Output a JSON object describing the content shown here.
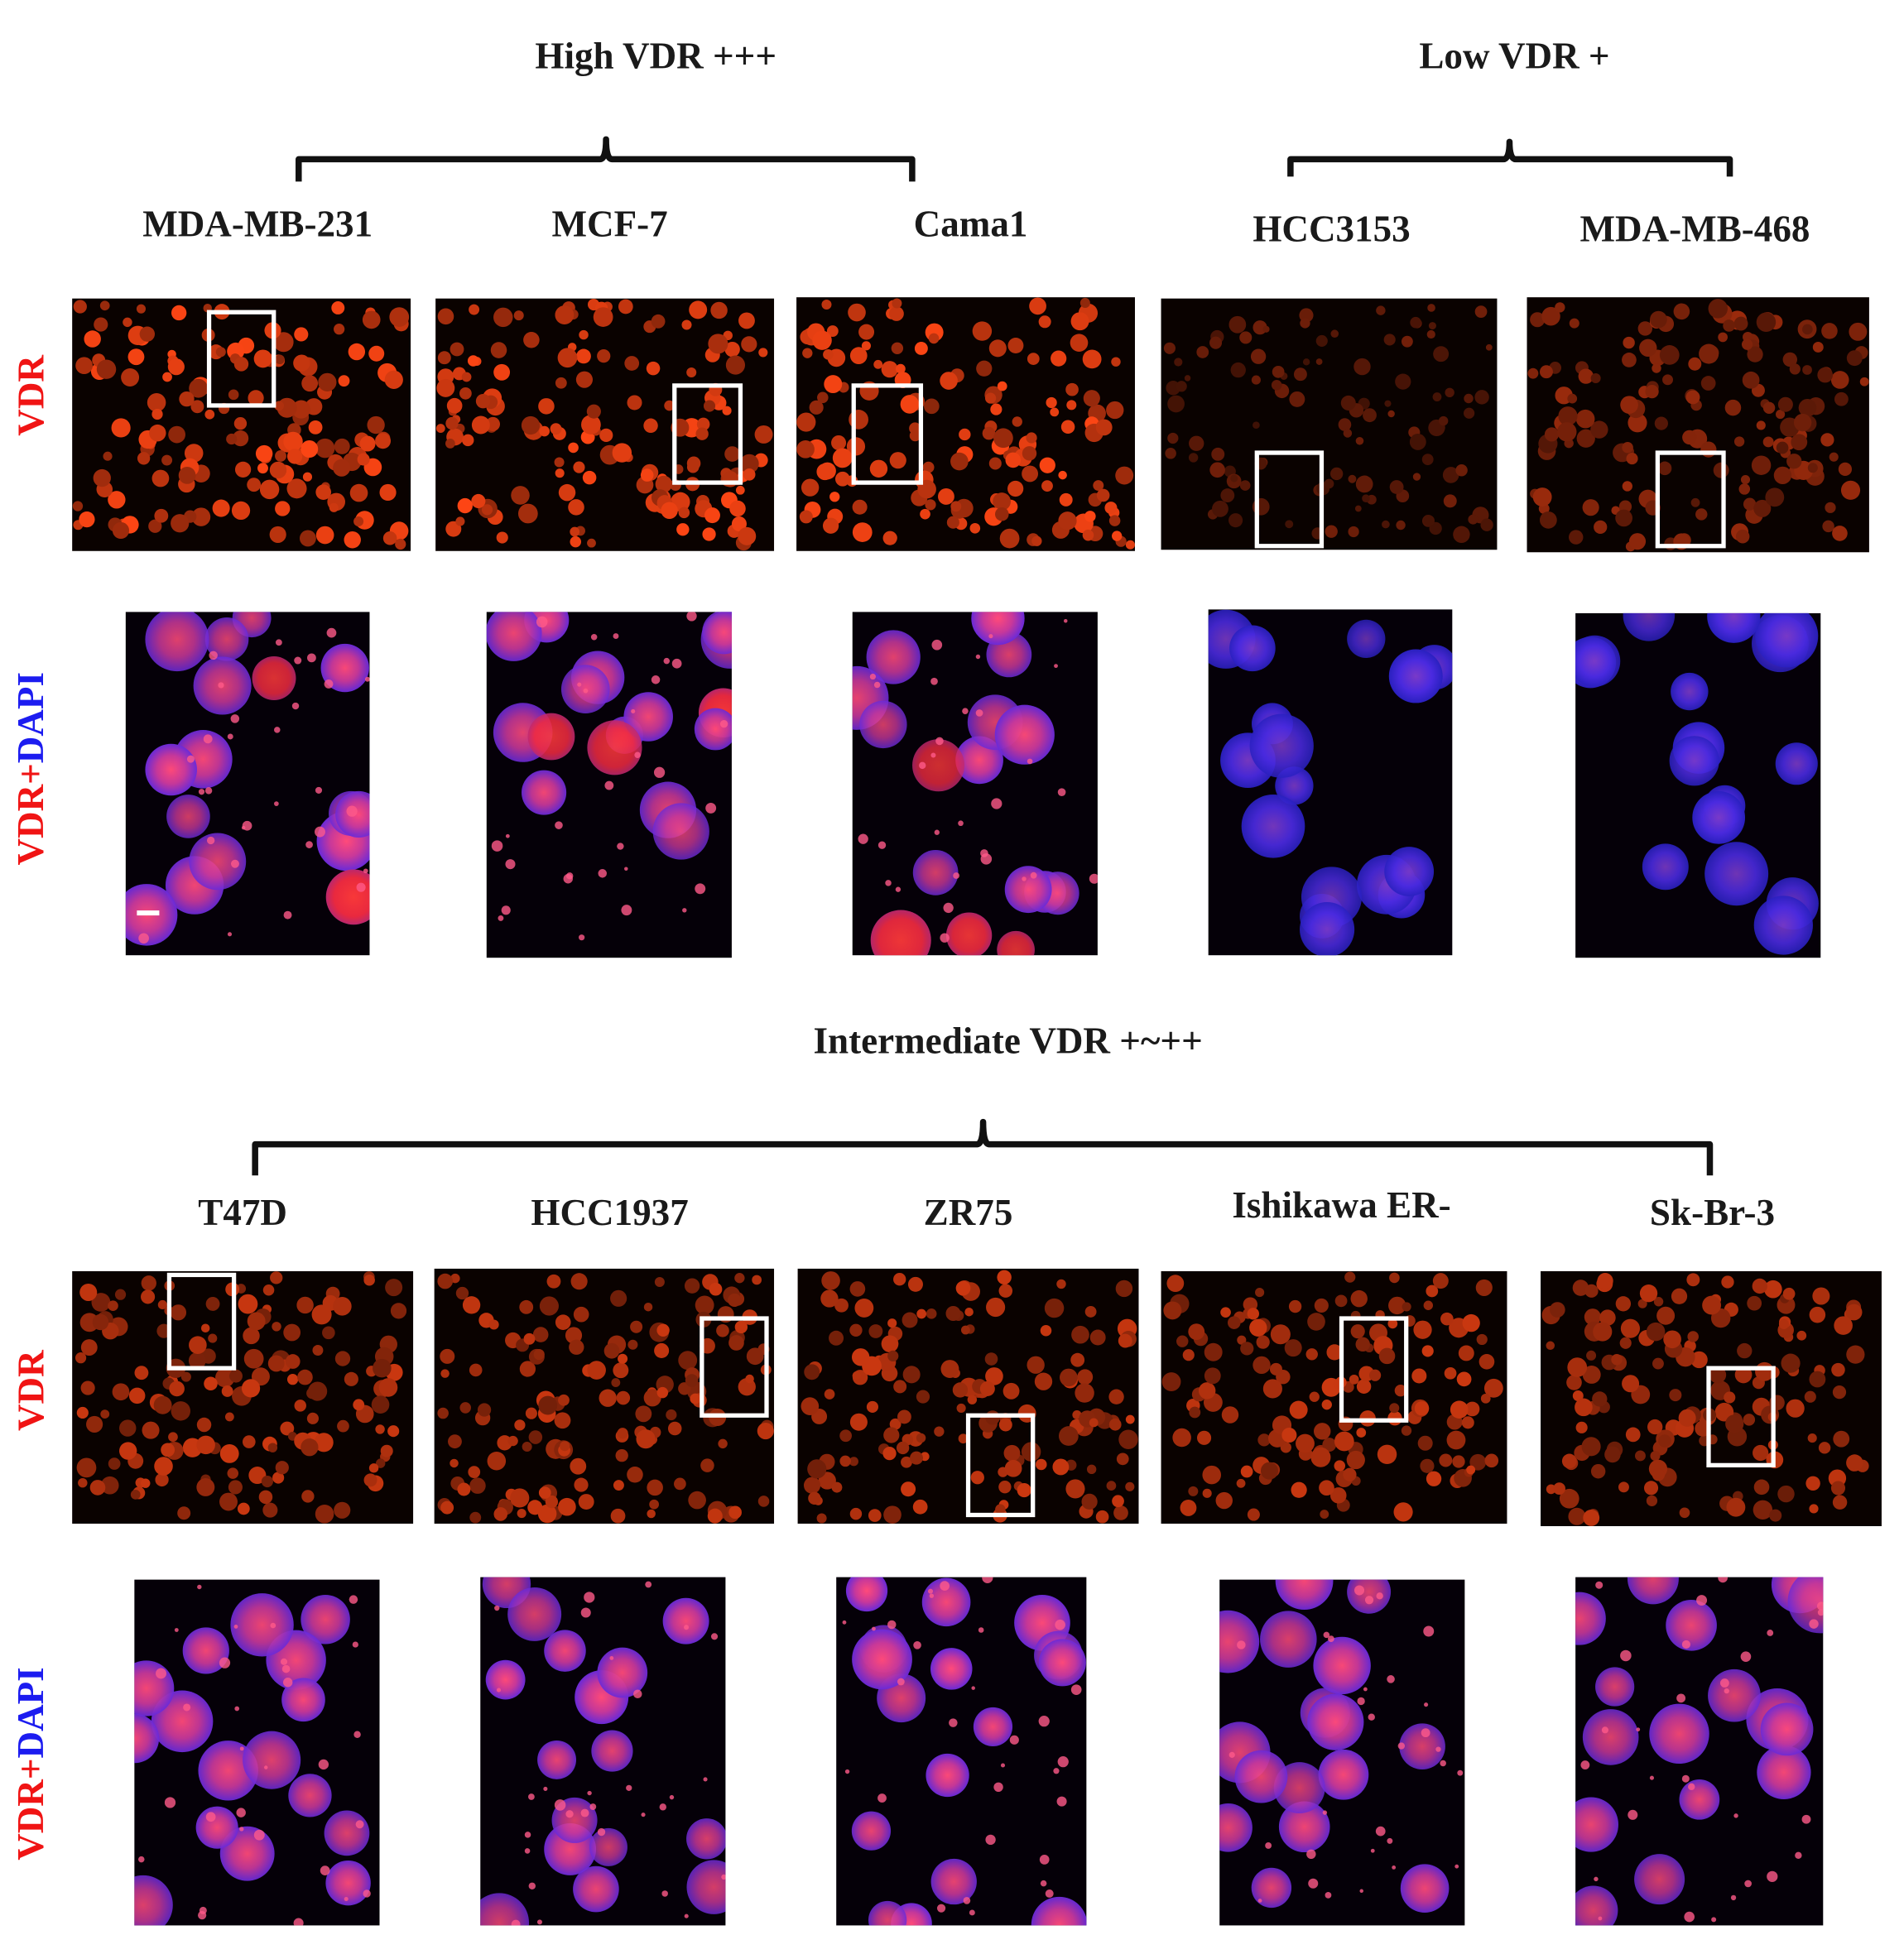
{
  "groups": [
    {
      "label": "High VDR +++"
    },
    {
      "label": "Low VDR +"
    },
    {
      "label": "Intermediate VDR +~++"
    }
  ],
  "cell_lines": [
    "MDA-MB-231",
    "MCF-7",
    "Cama1",
    "HCC3153",
    "MDA-MB-468",
    "T47D",
    "HCC1937",
    "ZR75",
    "Ishikawa ER-",
    "Sk-Br-3"
  ],
  "row_labels": {
    "vdr": "VDR",
    "merge_vdr": "VDR+",
    "merge_dapi": "DAPI"
  }
}
